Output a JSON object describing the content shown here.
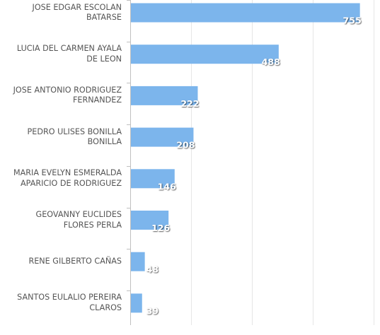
{
  "chart_data": {
    "type": "bar",
    "orientation": "horizontal",
    "categories": [
      "JOSE EDGAR ESCOLAN\nBATARSE",
      "LUCIA DEL CARMEN AYALA\nDE LEON",
      "JOSE ANTONIO RODRIGUEZ\nFERNANDEZ",
      "PEDRO ULISES BONILLA\nBONILLA",
      "MARIA EVELYN ESMERALDA\nAPARICIO DE RODRIGUEZ",
      "GEOVANNY EUCLIDES\nFLORES PERLA",
      "RENE GILBERTO CAÑAS",
      "SANTOS EULALIO PEREIRA\nCLAROS"
    ],
    "values": [
      755,
      488,
      222,
      208,
      146,
      126,
      48,
      39
    ],
    "data_labels": [
      "755",
      "488",
      "222",
      "208",
      "146",
      "126",
      "48",
      "39"
    ],
    "xlim": [
      0,
      800
    ],
    "grid": true,
    "bar_color": "#7cb5ec",
    "gridline_color": "#e6e6e6",
    "axis_color": "#c0c0c0",
    "label_color": "#555555",
    "title": "",
    "xlabel": "",
    "ylabel": ""
  }
}
